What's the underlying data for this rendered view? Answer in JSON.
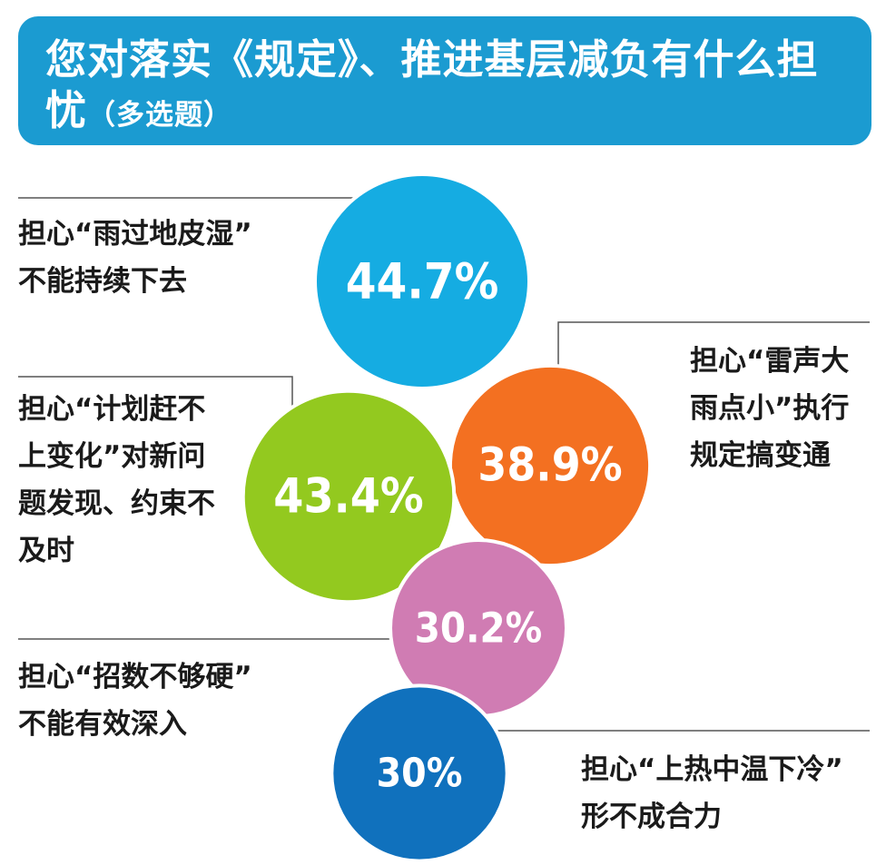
{
  "title": {
    "main": "您对落实《规定》、推进基层减负有什么担忧",
    "sub": "（多选题）"
  },
  "chart_data": {
    "type": "bubble",
    "title": "您对落实《规定》、推进基层减负有什么担忧（多选题）",
    "items": [
      {
        "label": "担心“雨过地皮湿”\n不能持续下去",
        "value": 44.7,
        "value_label": "44.7%",
        "color": "#15ace2"
      },
      {
        "label": "担心“雷声大\n雨点小”执行\n规定搞变通",
        "value": 38.9,
        "value_label": "38.9%",
        "color": "#f37021"
      },
      {
        "label": "担心“计划赶不\n上变化”对新问\n题发现、约束不\n及时",
        "value": 43.4,
        "value_label": "43.4%",
        "color": "#93c91f"
      },
      {
        "label": "担心“招数不够硬”\n不能有效深入",
        "value": 30.2,
        "value_label": "30.2%",
        "color": "#d07cb3"
      },
      {
        "label": "担心“上热中温下冷”\n形不成合力",
        "value": 30,
        "value_label": "30%",
        "color": "#1071bd"
      }
    ]
  }
}
